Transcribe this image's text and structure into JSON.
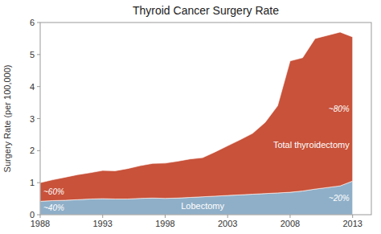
{
  "chart_data": {
    "type": "area",
    "stacked": true,
    "title": "Thyroid Cancer Surgery Rate",
    "ylabel": "Surgery Rate (per 100,000)",
    "x": [
      1988,
      1989,
      1990,
      1991,
      1992,
      1993,
      1994,
      1995,
      1996,
      1997,
      1998,
      1999,
      2000,
      2001,
      2002,
      2003,
      2004,
      2005,
      2006,
      2007,
      2008,
      2009,
      2010,
      2011,
      2012,
      2013
    ],
    "series": [
      {
        "name": "Lobectomy",
        "color": "#8fafc8",
        "values": [
          0.42,
          0.44,
          0.45,
          0.47,
          0.49,
          0.5,
          0.49,
          0.49,
          0.51,
          0.52,
          0.51,
          0.52,
          0.54,
          0.56,
          0.58,
          0.6,
          0.62,
          0.64,
          0.66,
          0.68,
          0.7,
          0.74,
          0.8,
          0.85,
          0.9,
          1.05
        ]
      },
      {
        "name": "Total thyroidectomy",
        "color": "#c8523a",
        "values": [
          0.58,
          0.65,
          0.72,
          0.78,
          0.82,
          0.88,
          0.88,
          0.95,
          1.02,
          1.08,
          1.1,
          1.15,
          1.2,
          1.22,
          1.38,
          1.55,
          1.72,
          1.9,
          2.22,
          2.72,
          4.1,
          4.16,
          4.7,
          4.75,
          4.8,
          4.5
        ]
      }
    ],
    "annotations": [
      {
        "text": "~60%",
        "x": 1988,
        "series": "Total thyroidectomy"
      },
      {
        "text": "~40%",
        "x": 1988,
        "series": "Lobectomy"
      },
      {
        "text": "~80%",
        "x": 2013,
        "series": "Total thyroidectomy"
      },
      {
        "text": "~20%",
        "x": 2013,
        "series": "Lobectomy"
      }
    ],
    "xlim": [
      1988,
      2014.5
    ],
    "xticks": [
      1988,
      1993,
      1998,
      2003,
      2008,
      2013
    ],
    "ylim": [
      0,
      6
    ],
    "yticks": [
      0,
      1,
      2,
      3,
      4,
      5,
      6
    ],
    "grid": false
  }
}
